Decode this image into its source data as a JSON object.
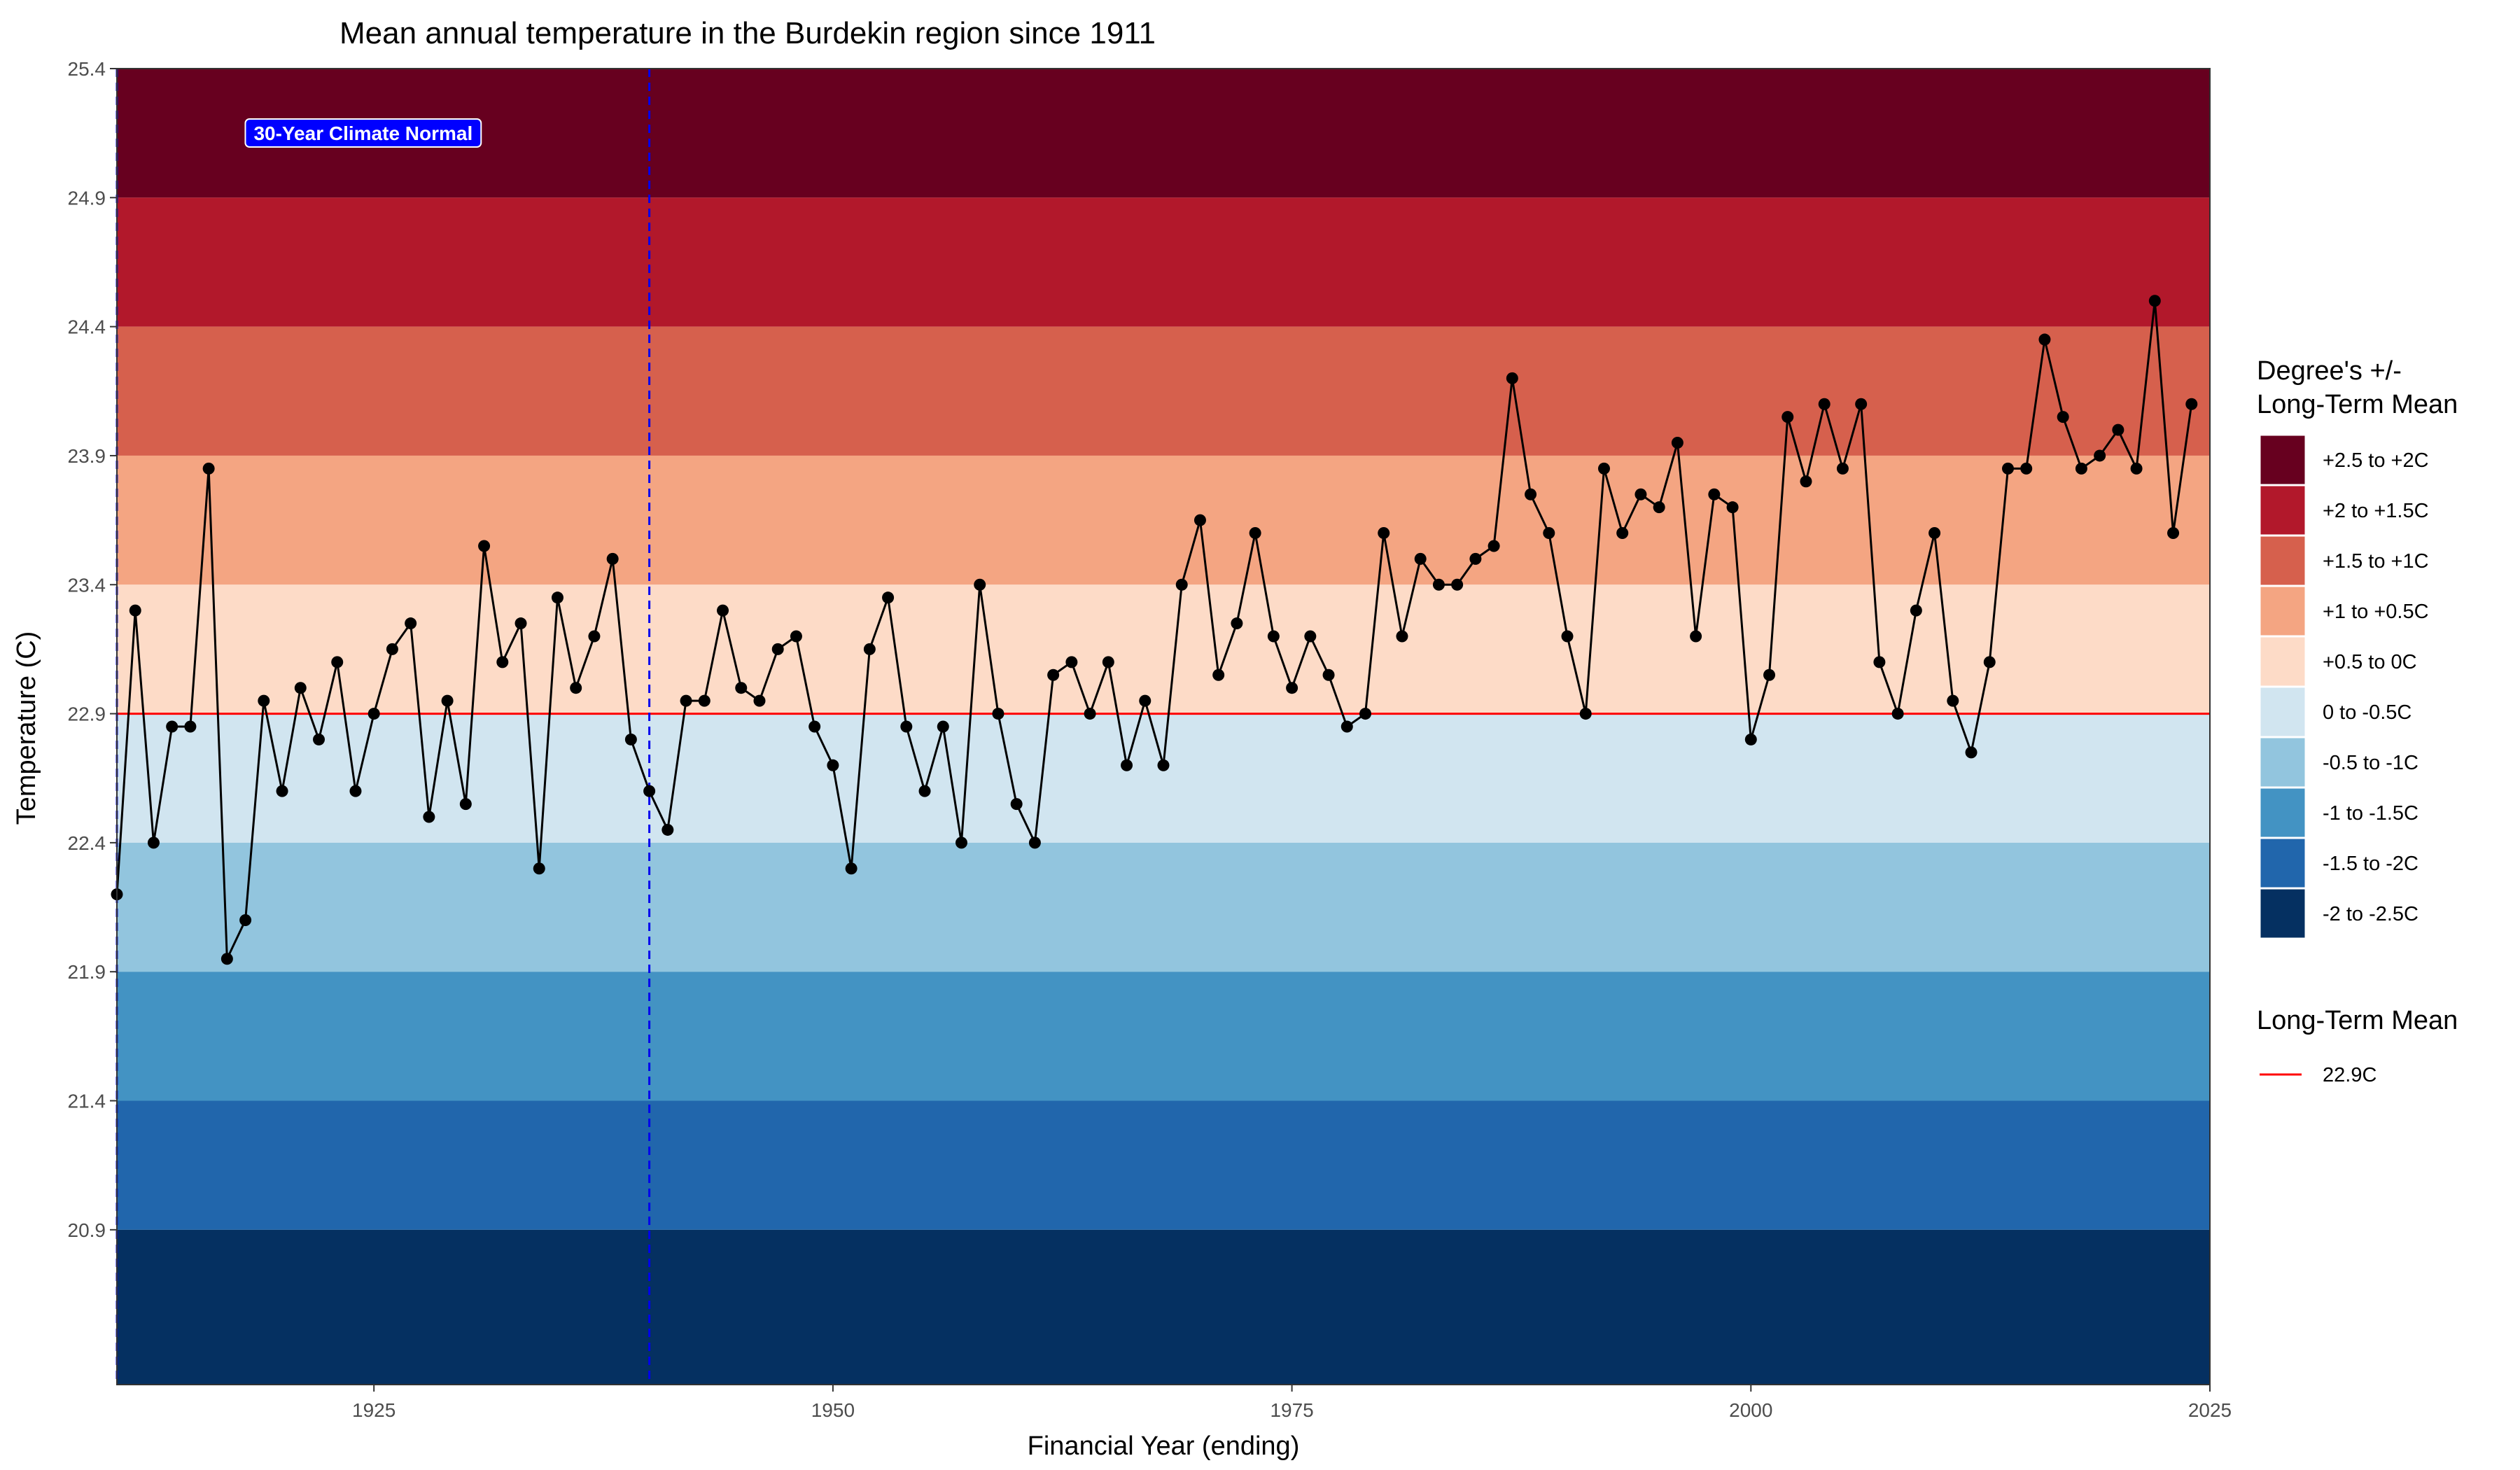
{
  "chart_data": {
    "type": "line",
    "title": "Mean annual temperature in the Burdekin region since 1911",
    "xlabel": "Financial Year (ending)",
    "ylabel": "Temperature (C)",
    "xlim": [
      1911,
      2025
    ],
    "ylim": [
      20.3,
      25.4
    ],
    "x_ticks": [
      1925,
      1950,
      1975,
      2000,
      2025
    ],
    "y_ticks": [
      20.9,
      21.4,
      21.9,
      22.4,
      22.9,
      23.4,
      23.9,
      24.4,
      24.9,
      25.4
    ],
    "long_term_mean": {
      "value": 22.9,
      "color": "#ff0000"
    },
    "climate_normal": {
      "label": "30-Year Climate Normal",
      "start": 1911,
      "end": 1940,
      "line_color": "#0000ee",
      "label_bg": "#0000ff"
    },
    "bands": [
      {
        "label": "+2.5 to +2C",
        "from": 24.9,
        "to": 25.4,
        "color": "#67001f"
      },
      {
        "label": "+2 to +1.5C",
        "from": 24.4,
        "to": 24.9,
        "color": "#b2182b"
      },
      {
        "label": "+1.5 to +1C",
        "from": 23.9,
        "to": 24.4,
        "color": "#d6604d"
      },
      {
        "label": "+1 to +0.5C",
        "from": 23.4,
        "to": 23.9,
        "color": "#f4a582"
      },
      {
        "label": "+0.5 to 0C",
        "from": 22.9,
        "to": 23.4,
        "color": "#fddbc7"
      },
      {
        "label": "0 to -0.5C",
        "from": 22.4,
        "to": 22.9,
        "color": "#d1e5f0"
      },
      {
        "label": "-0.5 to -1C",
        "from": 21.9,
        "to": 22.4,
        "color": "#92c5de"
      },
      {
        "label": "-1 to -1.5C",
        "from": 21.4,
        "to": 21.9,
        "color": "#4393c3"
      },
      {
        "label": "-1.5 to -2C",
        "from": 20.9,
        "to": 21.4,
        "color": "#2166ac"
      },
      {
        "label": "-2 to -2.5C",
        "from": 20.3,
        "to": 20.9,
        "color": "#053061"
      }
    ],
    "legend": {
      "position": "right",
      "bands_title": [
        "Degree's +/-",
        "Long-Term Mean"
      ],
      "mean_title": "Long-Term Mean",
      "mean_label": "22.9C"
    },
    "series": [
      {
        "x": [
          1911,
          1912,
          1913,
          1914,
          1915,
          1916,
          1917,
          1918,
          1919,
          1920,
          1921,
          1922,
          1923,
          1924,
          1925,
          1926,
          1927,
          1928,
          1929,
          1930,
          1931,
          1932,
          1933,
          1934,
          1935,
          1936,
          1937,
          1938,
          1939,
          1940,
          1941,
          1942,
          1943,
          1944,
          1945,
          1946,
          1947,
          1948,
          1949,
          1950,
          1951,
          1952,
          1953,
          1954,
          1955,
          1956,
          1957,
          1958,
          1959,
          1960,
          1961,
          1962,
          1963,
          1964,
          1965,
          1966,
          1967,
          1968,
          1969,
          1970,
          1971,
          1972,
          1973,
          1974,
          1975,
          1976,
          1977,
          1978,
          1979,
          1980,
          1981,
          1982,
          1983,
          1984,
          1985,
          1986,
          1987,
          1988,
          1989,
          1990,
          1991,
          1992,
          1993,
          1994,
          1995,
          1996,
          1997,
          1998,
          1999,
          2000,
          2001,
          2002,
          2003,
          2004,
          2005,
          2006,
          2007,
          2008,
          2009,
          2010,
          2011,
          2012,
          2013,
          2014,
          2015,
          2016,
          2017,
          2018,
          2019,
          2020,
          2021,
          2022,
          2023,
          2024
        ],
        "values": [
          22.2,
          23.3,
          22.4,
          22.85,
          22.85,
          23.85,
          21.95,
          22.1,
          22.95,
          22.6,
          23.0,
          22.8,
          23.1,
          22.6,
          22.9,
          23.15,
          23.25,
          22.5,
          22.95,
          22.55,
          23.55,
          23.1,
          23.25,
          22.3,
          23.35,
          23.0,
          23.2,
          23.5,
          22.8,
          22.6,
          22.45,
          22.95,
          22.95,
          23.3,
          23.0,
          22.95,
          23.15,
          23.2,
          22.85,
          22.7,
          22.3,
          23.15,
          23.35,
          22.85,
          22.6,
          22.85,
          22.4,
          23.4,
          22.9,
          22.55,
          22.4,
          23.05,
          23.1,
          22.9,
          23.1,
          22.7,
          22.95,
          22.7,
          23.4,
          23.65,
          23.05,
          23.25,
          23.6,
          23.2,
          23.0,
          23.2,
          23.05,
          22.85,
          22.9,
          23.6,
          23.2,
          23.5,
          23.4,
          23.4,
          23.5,
          23.55,
          24.2,
          23.75,
          23.6,
          23.2,
          22.9,
          23.85,
          23.6,
          23.75,
          23.7,
          23.95,
          23.2,
          23.75,
          23.7,
          22.8,
          23.05,
          24.05,
          23.8,
          24.1,
          23.85,
          24.1,
          23.1,
          22.9,
          23.3,
          23.6,
          22.95,
          22.75,
          23.1,
          23.85,
          23.85,
          24.35,
          24.05,
          23.85,
          23.9,
          24.0,
          23.85,
          24.5,
          23.6,
          24.1
        ],
        "color": "#000000"
      }
    ]
  }
}
